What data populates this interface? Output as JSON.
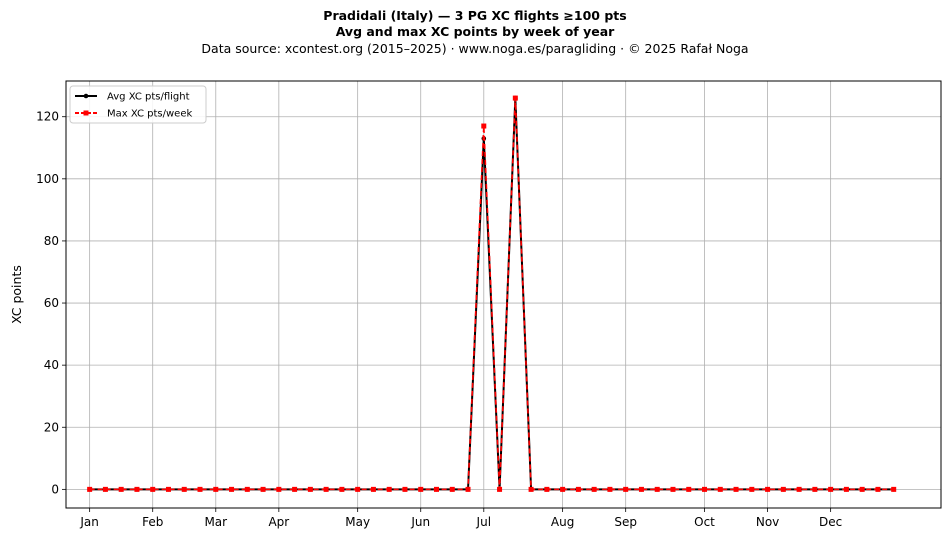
{
  "chart_data": {
    "type": "line",
    "title": "Pradidali (Italy)  —  3 PG XC flights ≥100 pts",
    "subtitle": "Avg and max XC points by week of year",
    "source": "Data source: xcontest.org (2015–2025)  ·  www.noga.es/paragliding  ·  © 2025 Rafał Noga",
    "xlabel": "",
    "ylabel": "XC points",
    "ylim": [
      -6,
      131.5
    ],
    "xlim": [
      -1.5,
      54
    ],
    "yticks": [
      0,
      20,
      40,
      60,
      80,
      100,
      120
    ],
    "month_ticks": [
      {
        "label": "Jan",
        "week": 0
      },
      {
        "label": "Feb",
        "week": 4
      },
      {
        "label": "Mar",
        "week": 8
      },
      {
        "label": "Apr",
        "week": 12
      },
      {
        "label": "May",
        "week": 17
      },
      {
        "label": "Jun",
        "week": 21
      },
      {
        "label": "Jul",
        "week": 25
      },
      {
        "label": "Aug",
        "week": 30
      },
      {
        "label": "Sep",
        "week": 34
      },
      {
        "label": "Oct",
        "week": 39
      },
      {
        "label": "Nov",
        "week": 43
      },
      {
        "label": "Dec",
        "week": 47
      }
    ],
    "grid": true,
    "legend_position": "top-left",
    "x": [
      0,
      1,
      2,
      3,
      4,
      5,
      6,
      7,
      8,
      9,
      10,
      11,
      12,
      13,
      14,
      15,
      16,
      17,
      18,
      19,
      20,
      21,
      22,
      23,
      24,
      25,
      26,
      27,
      28,
      29,
      30,
      31,
      32,
      33,
      34,
      35,
      36,
      37,
      38,
      39,
      40,
      41,
      42,
      43,
      44,
      45,
      46,
      47,
      48,
      49,
      50,
      51
    ],
    "series": [
      {
        "name": "Avg XC pts/flight",
        "color": "#000000",
        "style": "solid",
        "marker": "circle",
        "values": [
          0,
          0,
          0,
          0,
          0,
          0,
          0,
          0,
          0,
          0,
          0,
          0,
          0,
          0,
          0,
          0,
          0,
          0,
          0,
          0,
          0,
          0,
          0,
          0,
          0,
          113,
          0,
          126,
          0,
          0,
          0,
          0,
          0,
          0,
          0,
          0,
          0,
          0,
          0,
          0,
          0,
          0,
          0,
          0,
          0,
          0,
          0,
          0,
          0,
          0,
          0,
          0
        ]
      },
      {
        "name": "Max XC pts/week",
        "color": "#ff0000",
        "style": "dashed",
        "marker": "square",
        "values": [
          0,
          0,
          0,
          0,
          0,
          0,
          0,
          0,
          0,
          0,
          0,
          0,
          0,
          0,
          0,
          0,
          0,
          0,
          0,
          0,
          0,
          0,
          0,
          0,
          0,
          117,
          0,
          126,
          0,
          0,
          0,
          0,
          0,
          0,
          0,
          0,
          0,
          0,
          0,
          0,
          0,
          0,
          0,
          0,
          0,
          0,
          0,
          0,
          0,
          0,
          0,
          0
        ]
      }
    ]
  }
}
